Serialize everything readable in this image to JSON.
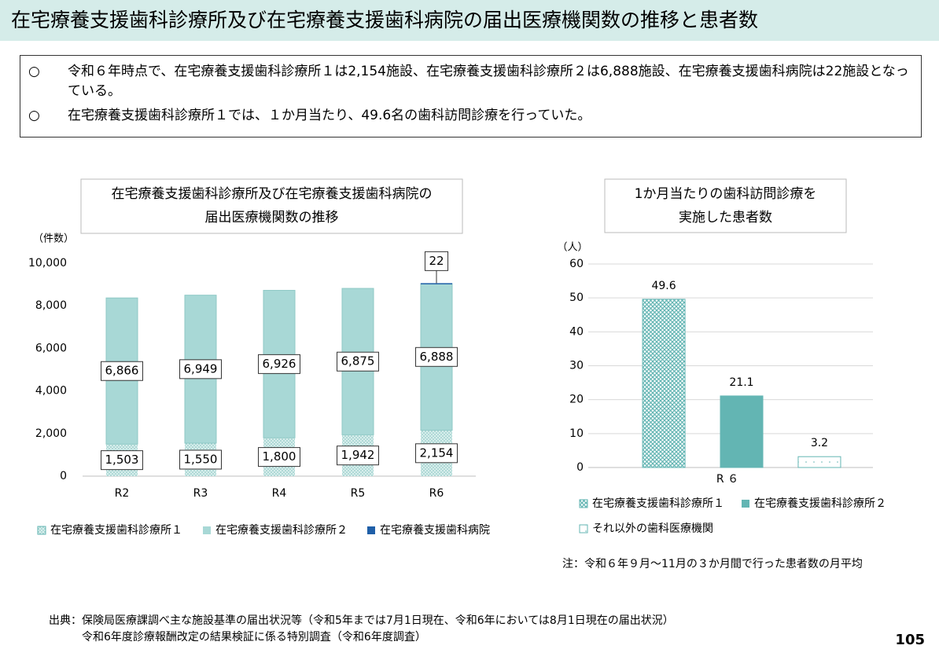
{
  "header": {
    "title": "在宅療養支援歯科診療所及び在宅療養支援歯科病院の届出医療機関数の推移と患者数"
  },
  "summary": {
    "items": [
      {
        "marker": "○",
        "text": "令和６年時点で、在宅療養支援歯科診療所１は2,154施設、在宅療養支援歯科診療所２は6,888施設、在宅療養支援歯科病院は22施設となっている。"
      },
      {
        "marker": "○",
        "text": "在宅療養支援歯科診療所１では、１か月当たり、49.6名の歯科訪問診療を行っていた。"
      }
    ]
  },
  "chart_data": [
    {
      "type": "stacked_bar",
      "title": [
        "在宅療養支援歯科診療所及び在宅療養支援歯科病院の",
        "届出医療機関数の推移"
      ],
      "y_unit": "（件数）",
      "categories": [
        "R2",
        "R3",
        "R4",
        "R5",
        "R6"
      ],
      "series": [
        {
          "name": "在宅療養支援歯科診療所１",
          "color": "#a8d8d6",
          "pattern": "dots",
          "values": [
            1503,
            1550,
            1800,
            1942,
            2154
          ],
          "value_labels": [
            "1,503",
            "1,550",
            "1,800",
            "1,942",
            "2,154"
          ]
        },
        {
          "name": "在宅療養支援歯科診療所２",
          "color": "#a8d8d6",
          "values": [
            6866,
            6949,
            6926,
            6875,
            6888
          ],
          "value_labels": [
            "6,866",
            "6,949",
            "6,926",
            "6,875",
            "6,888"
          ]
        },
        {
          "name": "在宅療養支援歯科病院",
          "color": "#1f5fa8",
          "values": [
            null,
            null,
            null,
            null,
            22
          ]
        }
      ],
      "ylim": [
        0,
        10000
      ],
      "yticks": [
        0,
        {
          "value": 2000,
          "label": "2,000"
        },
        {
          "value": 4000,
          "label": "4,000"
        },
        {
          "value": 6000,
          "label": "6,000"
        },
        {
          "value": 8000,
          "label": "8,000"
        },
        {
          "value": 10000,
          "label": "10,000"
        }
      ],
      "grid": false
    },
    {
      "type": "bar",
      "title": [
        "1か月当たりの歯科訪問診療を",
        "実施した患者数"
      ],
      "y_unit": "（人）",
      "categories": [
        "R ６"
      ],
      "series": [
        {
          "name": "在宅療養支援歯科診療所１",
          "color": "#63b5b3",
          "pattern": "cross",
          "values": [
            49.6
          ]
        },
        {
          "name": "在宅療養支援歯科診療所２",
          "color": "#63b5b3",
          "values": [
            21.1
          ]
        },
        {
          "name": "それ以外の歯科医療機関",
          "color": "#63b5b3",
          "pattern": "sparse",
          "values": [
            3.2
          ]
        }
      ],
      "ylim": [
        0,
        60
      ],
      "yticks": [
        0,
        10,
        20,
        30,
        40,
        50,
        60
      ],
      "grid": true,
      "note": "注：令和６年９月～11月の３か月間で行った患者数の月平均"
    }
  ],
  "source": {
    "label": "出典：",
    "lines": [
      "保険局医療課調べ主な施設基準の届出状況等（令和5年までは7月1日現在、令和6年においては8月1日現在の届出状況）",
      "令和6年度診療報酬改定の結果検証に係る特別調査（令和6年度調査）"
    ]
  },
  "page_number": "105"
}
